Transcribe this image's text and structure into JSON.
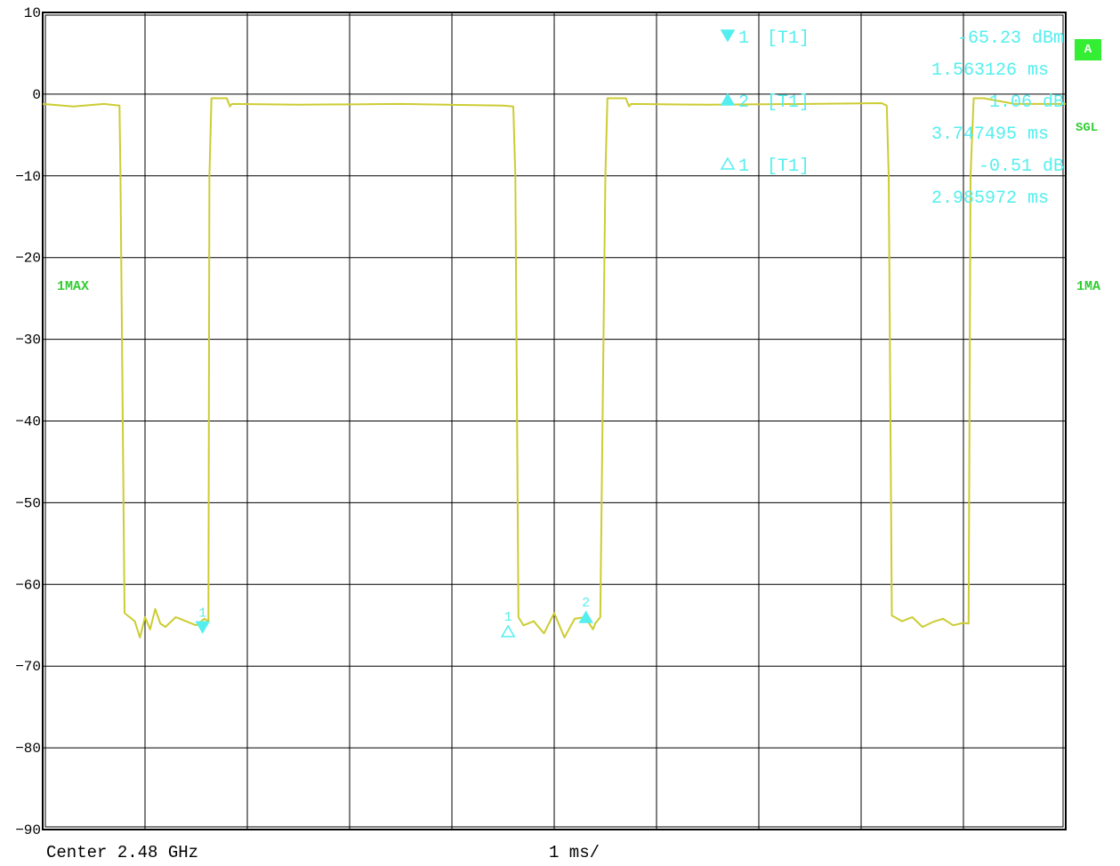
{
  "chart_data": {
    "type": "line",
    "ylim": [
      -90,
      10
    ],
    "y_ticks": [
      "10",
      "0",
      "−10",
      "−20",
      "−30",
      "−40",
      "−50",
      "−60",
      "−70",
      "−80",
      "−90"
    ],
    "x_unit": "ms",
    "xlim": [
      0,
      10
    ],
    "grid": true,
    "series": [
      {
        "color": "#cccc33",
        "x": [
          0.0,
          0.3,
          0.6,
          0.75,
          0.76,
          0.8,
          0.9,
          0.95,
          1.0,
          1.05,
          1.1,
          1.15,
          1.2,
          1.3,
          1.4,
          1.5,
          1.58,
          1.62,
          1.63,
          1.65,
          1.8,
          1.83,
          1.85,
          2.5,
          3.5,
          4.5,
          4.6,
          4.62,
          4.65,
          4.7,
          4.8,
          4.9,
          5.0,
          5.1,
          5.2,
          5.3,
          5.38,
          5.4,
          5.45,
          5.5,
          5.52,
          5.55,
          5.7,
          5.73,
          5.75,
          6.5,
          7.5,
          8.2,
          8.25,
          8.27,
          8.3,
          8.4,
          8.5,
          8.6,
          8.7,
          8.8,
          8.9,
          9.0,
          9.05,
          9.07,
          9.1,
          9.2,
          9.5,
          10.0
        ],
        "y": [
          -1.2,
          -1.5,
          -1.2,
          -1.4,
          -10,
          -63.5,
          -64.5,
          -66.5,
          -64,
          -65.5,
          -63,
          -64.8,
          -65.2,
          -64,
          -64.5,
          -65,
          -64.2,
          -64.5,
          -10,
          -0.5,
          -0.5,
          -1.5,
          -1.2,
          -1.3,
          -1.2,
          -1.4,
          -1.5,
          -10,
          -64,
          -65,
          -64.5,
          -66,
          -63.5,
          -66.5,
          -64.2,
          -64,
          -65.5,
          -64.8,
          -64,
          -10,
          -0.5,
          -0.5,
          -0.5,
          -1.5,
          -1.2,
          -1.3,
          -1.2,
          -1.1,
          -1.4,
          -10,
          -63.8,
          -64.5,
          -64,
          -65.2,
          -64.6,
          -64.2,
          -65,
          -64.7,
          -64.8,
          -10,
          -0.5,
          -0.5,
          -1.2,
          -1.2
        ]
      }
    ],
    "markers": [
      {
        "label": "1",
        "type": "filled-down",
        "x": 1.563,
        "y": -65.23
      },
      {
        "label": "1",
        "type": "hollow-up",
        "x": 4.549,
        "y": -65.74
      },
      {
        "label": "2",
        "type": "filled-up",
        "x": 5.31,
        "y": -64.0
      }
    ],
    "marker_table": [
      {
        "symbol": "filled-down",
        "id": "1",
        "tag": "[T1]",
        "value": "-65.23 dBm",
        "time": "1.563126 ms"
      },
      {
        "symbol": "filled-up",
        "id": "2",
        "tag": "[T1]",
        "value": "1.06 dB",
        "time": "3.747495 ms"
      },
      {
        "symbol": "hollow-up",
        "id": "1",
        "tag": "[T1]",
        "value": "-0.51 dB",
        "time": "2.985972 ms"
      }
    ],
    "colors": {
      "trace": "#cccc33",
      "marker": "#55eeee",
      "status": "#33cc33",
      "grid": "#000000"
    }
  },
  "labels": {
    "trace_left": "1MAX",
    "trace_right": "1MA",
    "badge": "A",
    "sweep_mode": "SGL",
    "center": "Center 2.48 GHz",
    "span": "1 ms/"
  }
}
